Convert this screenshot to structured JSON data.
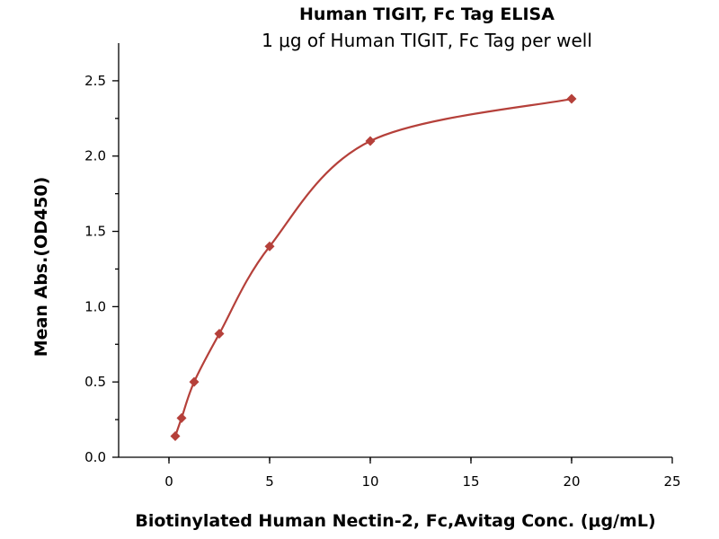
{
  "chart_data": {
    "type": "scatter",
    "title": "Human TIGIT, Fc Tag ELISA",
    "subtitle": "1 μg of Human TIGIT, Fc Tag per well",
    "xlabel": "Biotinylated Human Nectin-2, Fc,Avitag Conc. (μg/mL)",
    "ylabel": "Mean Abs.(OD450)",
    "xlim": [
      -2.5,
      25
    ],
    "ylim": [
      0,
      2.75
    ],
    "xticks": [
      0,
      5,
      10,
      15,
      20,
      25
    ],
    "xtick_labels": [
      "0",
      "5",
      "10",
      "15",
      "20",
      "25"
    ],
    "yticks": [
      0,
      0.5,
      1.0,
      1.5,
      2.0,
      2.5
    ],
    "ytick_labels": [
      "0.0",
      "0.5",
      "1.0",
      "1.5",
      "2.0",
      "2.5"
    ],
    "grid": false,
    "legend": "none",
    "series": [
      {
        "marker": "diamond",
        "color": "#B5403A",
        "fit_curve": true,
        "points": [
          {
            "x": 0.313,
            "y": 0.14
          },
          {
            "x": 0.625,
            "y": 0.26
          },
          {
            "x": 1.25,
            "y": 0.5
          },
          {
            "x": 2.5,
            "y": 0.82
          },
          {
            "x": 5,
            "y": 1.4
          },
          {
            "x": 10,
            "y": 2.1
          },
          {
            "x": 20,
            "y": 2.38
          }
        ]
      }
    ]
  }
}
